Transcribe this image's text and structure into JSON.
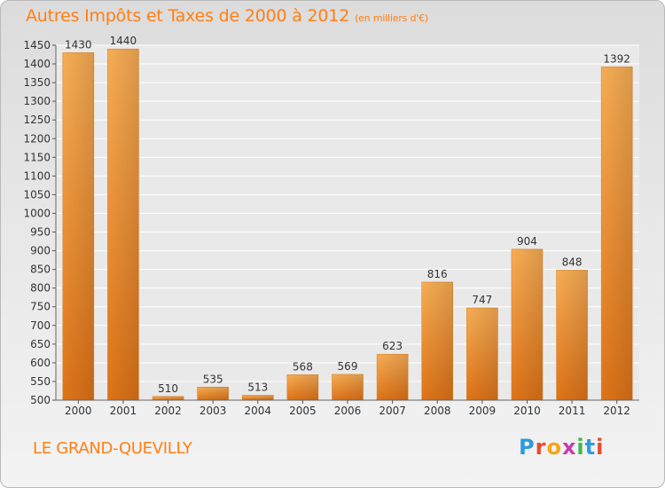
{
  "title": "Autres Impôts et Taxes de 2000 à 2012",
  "subtitle": "(en milliers d'€)",
  "place": "LE GRAND-QUEVILLY",
  "logo": {
    "letters": [
      "P",
      "r",
      "o",
      "x",
      "i",
      "t",
      "i"
    ],
    "colors": [
      "#2e9be0",
      "#e84a2c",
      "#f2a61a",
      "#c83cb0",
      "#3cb84a",
      "#2e9be0",
      "#e84a2c"
    ]
  },
  "colors": {
    "bar": "#f08a2c",
    "bar_light": "#f7b04e",
    "title": "#ff7f14",
    "label": "#333333"
  },
  "chart_data": {
    "type": "bar",
    "categories": [
      "2000",
      "2001",
      "2002",
      "2003",
      "2004",
      "2005",
      "2006",
      "2007",
      "2008",
      "2009",
      "2010",
      "2011",
      "2012"
    ],
    "values": [
      1430,
      1440,
      510,
      535,
      513,
      568,
      569,
      623,
      816,
      747,
      904,
      848,
      1392
    ],
    "ylim": [
      500,
      1450
    ],
    "yticks": [
      500,
      550,
      600,
      650,
      700,
      750,
      800,
      850,
      900,
      950,
      1000,
      1050,
      1100,
      1150,
      1200,
      1250,
      1300,
      1350,
      1400,
      1450
    ],
    "grid": true
  }
}
